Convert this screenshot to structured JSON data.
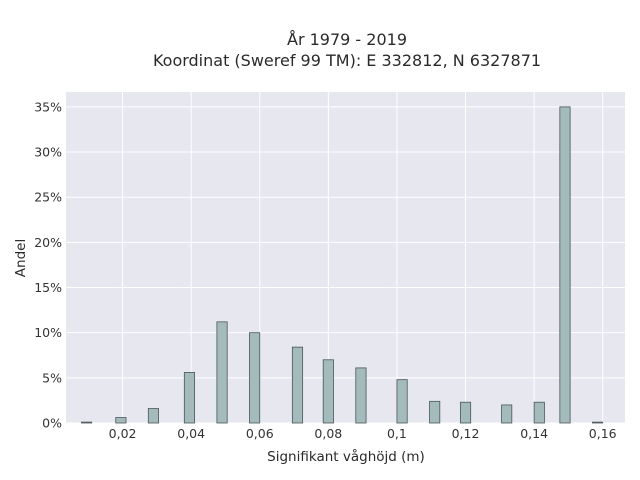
{
  "chart_data": {
    "type": "bar",
    "title_line1": "År 1979 - 2019",
    "title_line2": "Koordinat (Sweref 99 TM): E 332812, N 6327871",
    "xlabel": "Signifikant våghöjd (m)",
    "ylabel": "Andel",
    "xlim": [
      0.0035,
      0.1665
    ],
    "ylim": [
      0,
      0.3665
    ],
    "x_ticks": [
      {
        "value": 0.02,
        "label": "0,02"
      },
      {
        "value": 0.04,
        "label": "0,04"
      },
      {
        "value": 0.06,
        "label": "0,06"
      },
      {
        "value": 0.08,
        "label": "0,08"
      },
      {
        "value": 0.1,
        "label": "0,1"
      },
      {
        "value": 0.12,
        "label": "0,12"
      },
      {
        "value": 0.14,
        "label": "0,14"
      },
      {
        "value": 0.16,
        "label": "0,16"
      }
    ],
    "y_ticks": [
      {
        "value": 0,
        "label": "0%"
      },
      {
        "value": 0.05,
        "label": "5%"
      },
      {
        "value": 0.1,
        "label": "10%"
      },
      {
        "value": 0.15,
        "label": "15%"
      },
      {
        "value": 0.2,
        "label": "20%"
      },
      {
        "value": 0.25,
        "label": "25%"
      },
      {
        "value": 0.3,
        "label": "30%"
      },
      {
        "value": 0.35,
        "label": "35%"
      }
    ],
    "bar_width": 0.003,
    "bars": [
      {
        "x": 0.0095,
        "y": 0.001
      },
      {
        "x": 0.0195,
        "y": 0.006
      },
      {
        "x": 0.029,
        "y": 0.016
      },
      {
        "x": 0.0395,
        "y": 0.056
      },
      {
        "x": 0.049,
        "y": 0.112
      },
      {
        "x": 0.0585,
        "y": 0.1
      },
      {
        "x": 0.071,
        "y": 0.084
      },
      {
        "x": 0.08,
        "y": 0.07
      },
      {
        "x": 0.0895,
        "y": 0.061
      },
      {
        "x": 0.1015,
        "y": 0.048
      },
      {
        "x": 0.111,
        "y": 0.024
      },
      {
        "x": 0.12,
        "y": 0.023
      },
      {
        "x": 0.132,
        "y": 0.02
      },
      {
        "x": 0.1415,
        "y": 0.023
      },
      {
        "x": 0.149,
        "y": 0.35
      },
      {
        "x": 0.1585,
        "y": 0.001
      }
    ],
    "colors": {
      "plot_bg": "#e6e7ef",
      "grid": "#ffffff",
      "bar_fill": "#a3bbbb",
      "bar_stroke": "#4a5656"
    },
    "grid": true,
    "legend": "none"
  }
}
